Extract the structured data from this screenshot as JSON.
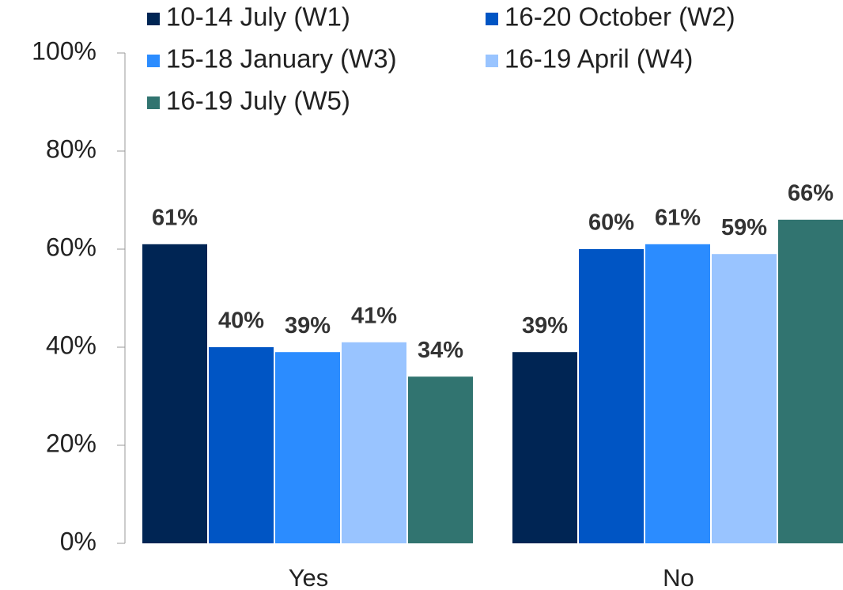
{
  "chart_data": {
    "type": "bar",
    "categories": [
      "Yes",
      "No"
    ],
    "series": [
      {
        "name": "10-14 July (W1)",
        "color": "#002554",
        "values": [
          61,
          39
        ],
        "value_labels": [
          "61%",
          "39%"
        ]
      },
      {
        "name": "16-20 October (W2)",
        "color": "#0055c4",
        "values": [
          40,
          60
        ],
        "value_labels": [
          "40%",
          "60%"
        ]
      },
      {
        "name": "15-18 January (W3)",
        "color": "#2b8cff",
        "values": [
          39,
          61
        ],
        "value_labels": [
          "39%",
          "61%"
        ]
      },
      {
        "name": "16-19 April (W4)",
        "color": "#99c4ff",
        "values": [
          41,
          59
        ],
        "value_labels": [
          "41%",
          "59%"
        ]
      },
      {
        "name": "16-19 July (W5)",
        "color": "#317470",
        "values": [
          34,
          66
        ],
        "value_labels": [
          "34%",
          "66%"
        ]
      }
    ],
    "ylim": [
      0,
      100
    ],
    "yticks": [
      {
        "value": 0,
        "label": "0%"
      },
      {
        "value": 20,
        "label": "20%"
      },
      {
        "value": 40,
        "label": "40%"
      },
      {
        "value": 60,
        "label": "60%"
      },
      {
        "value": 80,
        "label": "80%"
      },
      {
        "value": 100,
        "label": "100%"
      }
    ],
    "legend": "top"
  }
}
